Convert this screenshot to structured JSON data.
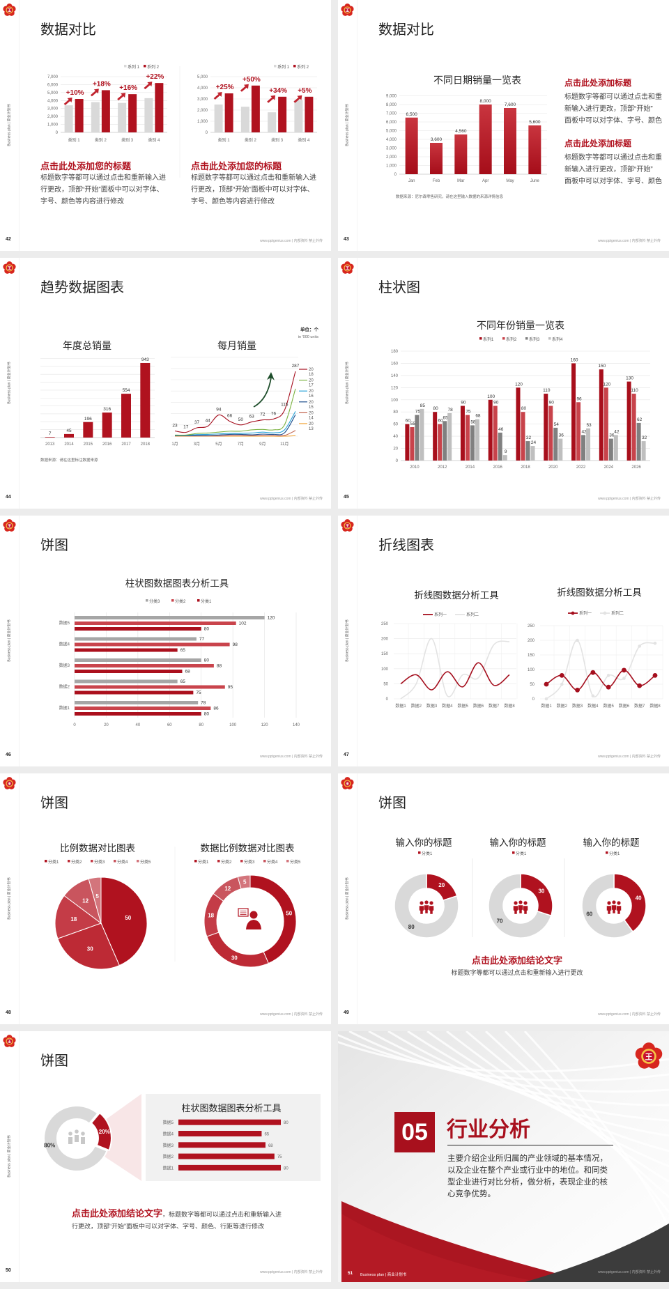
{
  "theme": {
    "accent": "#b0121f",
    "light_gray": "#d9d9d9",
    "dark_gray": "#404040"
  },
  "common": {
    "side_text": "Business plan | 商业计划书",
    "footer": "www.pptgenius.com | 内部资料 禁止外传",
    "logo": "flower-logo-icon"
  },
  "slides": [
    {
      "page": "42",
      "title": "数据对比",
      "blocks": [
        {
          "heading": "点击此处添加您的标题",
          "lines": [
            "标题数字等都可以通过点击和重新输入进",
            "行更改，顶部“开始”面板中可以对字体、",
            "字号、颜色等内容进行修改"
          ]
        },
        {
          "heading": "点击此处添加您的标题",
          "lines": [
            "标题数字等都可以通过点击和重新输入进",
            "行更改，顶部“开始”面板中可以对字体、",
            "字号、颜色等内容进行修改"
          ]
        }
      ]
    },
    {
      "page": "43",
      "title": "数据对比",
      "source": "数据来源：尼尔森零售研究，请在这里输入数据的来源详情信息",
      "blocks": [
        {
          "heading": "点击此处添加标题",
          "lines": [
            "标题数字等都可以通过点击和重",
            "新输入进行更改，顶部“开始”",
            "面板中可以对字体、字号、颜色"
          ]
        },
        {
          "heading": "点击此处添加标题",
          "lines": [
            "标题数字等都可以通过点击和重",
            "新输入进行更改，顶部“开始”",
            "面板中可以对字体、字号、颜色"
          ]
        }
      ]
    },
    {
      "page": "44",
      "title": "趋势数据图表",
      "unit": "单位：个",
      "unit_en": "in '000 units",
      "source": "数据来源：请在这里标注数据来源"
    },
    {
      "page": "45",
      "title": "柱状图"
    },
    {
      "page": "46",
      "title": "饼图"
    },
    {
      "page": "47",
      "title": "折线图表"
    },
    {
      "page": "48",
      "title": "饼图"
    },
    {
      "page": "49",
      "title": "饼图",
      "conclusion": "点击此处添加结论文字",
      "conclusion_body": "标题数字等都可以通过点击和重新输入进行更改"
    },
    {
      "page": "50",
      "title": "饼图",
      "conclusion": "点击此处添加结论文字",
      "conclusion_inline": "，标题数字等都可以通过点击和重新输入进",
      "conclusion_line2": "行更改，顶部“开始”面板中可以对字体、字号、颜色、行距等进行修改"
    },
    {
      "page": "51",
      "number": "05",
      "title": "行业分析",
      "lines": [
        "主要介绍企业所归属的产业领域的基本情况，",
        "以及企业在整个产业或行业中的地位。和同类",
        "型企业进行对比分析，做分析，表现企业的核",
        "心竞争优势。"
      ],
      "footer_left": "Business plan | 商业计划书"
    }
  ],
  "chart_data": [
    {
      "type": "bar",
      "categories": [
        "类别 1",
        "类别 2",
        "类别 3",
        "类别 4"
      ],
      "ylim": [
        0,
        7000
      ],
      "yticks": [
        0,
        1000,
        2000,
        3000,
        4000,
        5000,
        6000,
        7000
      ],
      "legend": "top-right",
      "series": [
        {
          "name": "系列 1",
          "color": "#d9d9d9",
          "values": [
            3400,
            3800,
            3700,
            4300
          ]
        },
        {
          "name": "系列 2",
          "color": "#b0121f",
          "values": [
            4200,
            5300,
            4800,
            6200
          ]
        }
      ],
      "annotations": [
        "+10%",
        "+18%",
        "+16%",
        "+22%"
      ]
    },
    {
      "type": "bar",
      "categories": [
        "类别 1",
        "类别 2",
        "类别 3",
        "类别 4"
      ],
      "ylim": [
        0,
        5000
      ],
      "yticks": [
        0,
        1000,
        2000,
        3000,
        4000,
        5000
      ],
      "legend": "top-right",
      "series": [
        {
          "name": "系列 1",
          "color": "#d9d9d9",
          "values": [
            2500,
            2300,
            1800,
            2900
          ]
        },
        {
          "name": "系列 2",
          "color": "#b0121f",
          "values": [
            3500,
            4200,
            3200,
            3200
          ]
        }
      ],
      "annotations": [
        "+25%",
        "+50%",
        "+34%",
        "+5%"
      ]
    },
    {
      "type": "bar",
      "title": "不同日期销量一览表",
      "categories": [
        "Jan",
        "Feb",
        "Mar",
        "Apr",
        "May",
        "June"
      ],
      "ylim": [
        0,
        9000
      ],
      "yticks": [
        0,
        1000,
        2000,
        3000,
        4000,
        5000,
        6000,
        7000,
        8000,
        9000
      ],
      "series": [
        {
          "color": "#b0121f",
          "values": [
            6500,
            3600,
            4560,
            8000,
            7600,
            5600
          ]
        }
      ]
    },
    {
      "type": "bar",
      "title": "年度总销量",
      "categories": [
        "2013",
        "2014",
        "2015",
        "2016",
        "2017",
        "2018"
      ],
      "ylim": [
        0,
        1000
      ],
      "grid": true,
      "series": [
        {
          "color": "#b0121f",
          "values": [
            7,
            45,
            196,
            316,
            554,
            943
          ]
        }
      ]
    },
    {
      "type": "line",
      "title": "每月销量",
      "x": [
        "1月",
        "2月",
        "3月",
        "4月",
        "5月",
        "6月",
        "7月",
        "8月",
        "9月",
        "10月",
        "11月",
        "12月"
      ],
      "xticks": [
        "1月",
        "3月",
        "5月",
        "7月",
        "9月",
        "11月"
      ],
      "ylim": [
        0,
        350
      ],
      "grid": true,
      "legend": "right",
      "series": [
        {
          "name": "2018",
          "color": "#a50f1e",
          "values": [
            23,
            17,
            37,
            44,
            94,
            66,
            50,
            63,
            72,
            76,
            115,
            287
          ],
          "labeled": true
        },
        {
          "name": "2017",
          "color": "#7cb342",
          "values": [
            5,
            5,
            12,
            14,
            18,
            22,
            22,
            28,
            30,
            28,
            50,
            210
          ]
        },
        {
          "name": "2016",
          "color": "#29a3d8",
          "values": [
            4,
            4,
            7,
            8,
            10,
            12,
            12,
            14,
            18,
            15,
            28,
            110
          ]
        },
        {
          "name": "2015",
          "color": "#1f4e8c",
          "values": [
            2,
            2,
            3,
            3,
            5,
            8,
            8,
            6,
            9,
            8,
            15,
            95
          ]
        },
        {
          "name": "2014",
          "color": "#c0604a",
          "values": [
            1,
            1,
            1,
            1,
            1,
            2,
            2,
            2,
            2,
            2,
            3,
            25
          ]
        },
        {
          "name": "2013",
          "color": "#f0a030",
          "values": [
            0,
            0,
            0,
            0,
            0,
            0,
            0,
            0,
            0,
            0,
            0,
            2
          ]
        }
      ]
    },
    {
      "type": "bar",
      "title": "不同年份销量一览表",
      "categories": [
        "2010",
        "2012",
        "2014",
        "2016",
        "2018",
        "2020",
        "2022",
        "2024",
        "2026"
      ],
      "ylim": [
        0,
        180
      ],
      "yticks": [
        0,
        20,
        40,
        60,
        80,
        100,
        120,
        140,
        160,
        180
      ],
      "legend": "top",
      "series": [
        {
          "name": "系列1",
          "color": "#a80f1c",
          "values": [
            60,
            80,
            90,
            100,
            120,
            110,
            160,
            150,
            130
          ]
        },
        {
          "name": "系列2",
          "color": "#c8434b",
          "values": [
            55,
            60,
            75,
            90,
            80,
            90,
            96,
            120,
            110
          ]
        },
        {
          "name": "系列3",
          "color": "#808080",
          "values": [
            75,
            65,
            58,
            46,
            32,
            54,
            42,
            36,
            62
          ]
        },
        {
          "name": "系列4",
          "color": "#bfbfbf",
          "values": [
            85,
            78,
            68,
            9,
            24,
            36,
            53,
            42,
            32
          ]
        }
      ]
    },
    {
      "type": "bar",
      "orientation": "horizontal",
      "title": "柱状图数据图表分析工具",
      "categories": [
        "数据5",
        "数据4",
        "数据3",
        "数据2",
        "数据1"
      ],
      "xlim": [
        0,
        140
      ],
      "xticks": [
        0,
        20,
        40,
        60,
        80,
        100,
        120,
        140
      ],
      "legend": "top",
      "series": [
        {
          "name": "分类3",
          "color": "#a6a6a6",
          "values": [
            120,
            77,
            80,
            65,
            78
          ]
        },
        {
          "name": "分类2",
          "color": "#c9444c",
          "values": [
            102,
            98,
            88,
            95,
            86
          ]
        },
        {
          "name": "分类1",
          "color": "#ab101d",
          "values": [
            80,
            65,
            68,
            75,
            80
          ]
        }
      ]
    },
    {
      "type": "line",
      "title": "折线图数据分析工具",
      "x": [
        "数据1",
        "数据2",
        "数据3",
        "数据4",
        "数据5",
        "数据6",
        "数据7",
        "数据8"
      ],
      "ylim": [
        0,
        250
      ],
      "yticks": [
        0,
        50,
        100,
        150,
        200,
        250
      ],
      "legend": "top",
      "series": [
        {
          "name": "系列一",
          "color": "#a50f1e",
          "values": [
            50,
            80,
            30,
            90,
            40,
            120,
            45,
            80
          ]
        },
        {
          "name": "系列二",
          "color": "#e3e3e3",
          "values": [
            0,
            50,
            200,
            10,
            80,
            70,
            180,
            190
          ]
        }
      ]
    },
    {
      "type": "line",
      "title": "折线图数据分析工具",
      "markers": true,
      "x": [
        "数据1",
        "数据2",
        "数据3",
        "数据4",
        "数据5",
        "数据6",
        "数据7",
        "数据8"
      ],
      "ylim": [
        0,
        250
      ],
      "yticks": [
        0,
        50,
        100,
        150,
        200,
        250
      ],
      "legend": "top",
      "series": [
        {
          "name": "系列一",
          "color": "#a50f1e",
          "values": [
            50,
            80,
            30,
            90,
            40,
            98,
            45,
            80
          ]
        },
        {
          "name": "系列二",
          "color": "#e3e3e3",
          "values": [
            0,
            50,
            200,
            10,
            80,
            70,
            180,
            190
          ]
        }
      ]
    },
    {
      "type": "pie",
      "title": "比例数据对比图表",
      "legend": "top",
      "labels": [
        "分类1",
        "分类2",
        "分类3",
        "分类4",
        "分类5"
      ],
      "values": [
        50,
        30,
        18,
        12,
        5
      ],
      "colors": [
        "#b0121f",
        "#bd2a35",
        "#c43c47",
        "#c9555e",
        "#d3757c"
      ]
    },
    {
      "type": "pie",
      "donut": true,
      "title": "数据比例数据对比图表",
      "legend": "top",
      "labels": [
        "分类1",
        "分类2",
        "分类3",
        "分类4",
        "分类5"
      ],
      "values": [
        50,
        30,
        18,
        12,
        5
      ],
      "colors": [
        "#b0121f",
        "#bd2a35",
        "#c43c47",
        "#c9555e",
        "#d3757c"
      ]
    },
    {
      "type": "pie",
      "donut": true,
      "title": "输入你的标题",
      "legend_label": "分类1",
      "values": [
        20,
        80
      ],
      "colors": [
        "#b0121f",
        "#d9d9d9"
      ]
    },
    {
      "type": "pie",
      "donut": true,
      "title": "输入你的标题",
      "legend_label": "分类1",
      "values": [
        30,
        70
      ],
      "colors": [
        "#b0121f",
        "#d9d9d9"
      ]
    },
    {
      "type": "pie",
      "donut": true,
      "title": "输入你的标题",
      "legend_label": "分类1",
      "values": [
        40,
        60
      ],
      "colors": [
        "#b0121f",
        "#d9d9d9"
      ]
    },
    {
      "type": "pie",
      "donut": true,
      "labels": [
        "20%",
        "80%"
      ],
      "values": [
        20,
        80
      ],
      "colors": [
        "#b0121f",
        "#d9d9d9"
      ]
    },
    {
      "type": "bar",
      "orientation": "horizontal",
      "title": "柱状图数据图表分析工具",
      "categories": [
        "数据5",
        "数据4",
        "数据3",
        "数据2",
        "数据1"
      ],
      "xlim": [
        0,
        80
      ],
      "series": [
        {
          "color": "#b0121f",
          "values": [
            80,
            65,
            68,
            75,
            80
          ]
        }
      ]
    }
  ]
}
